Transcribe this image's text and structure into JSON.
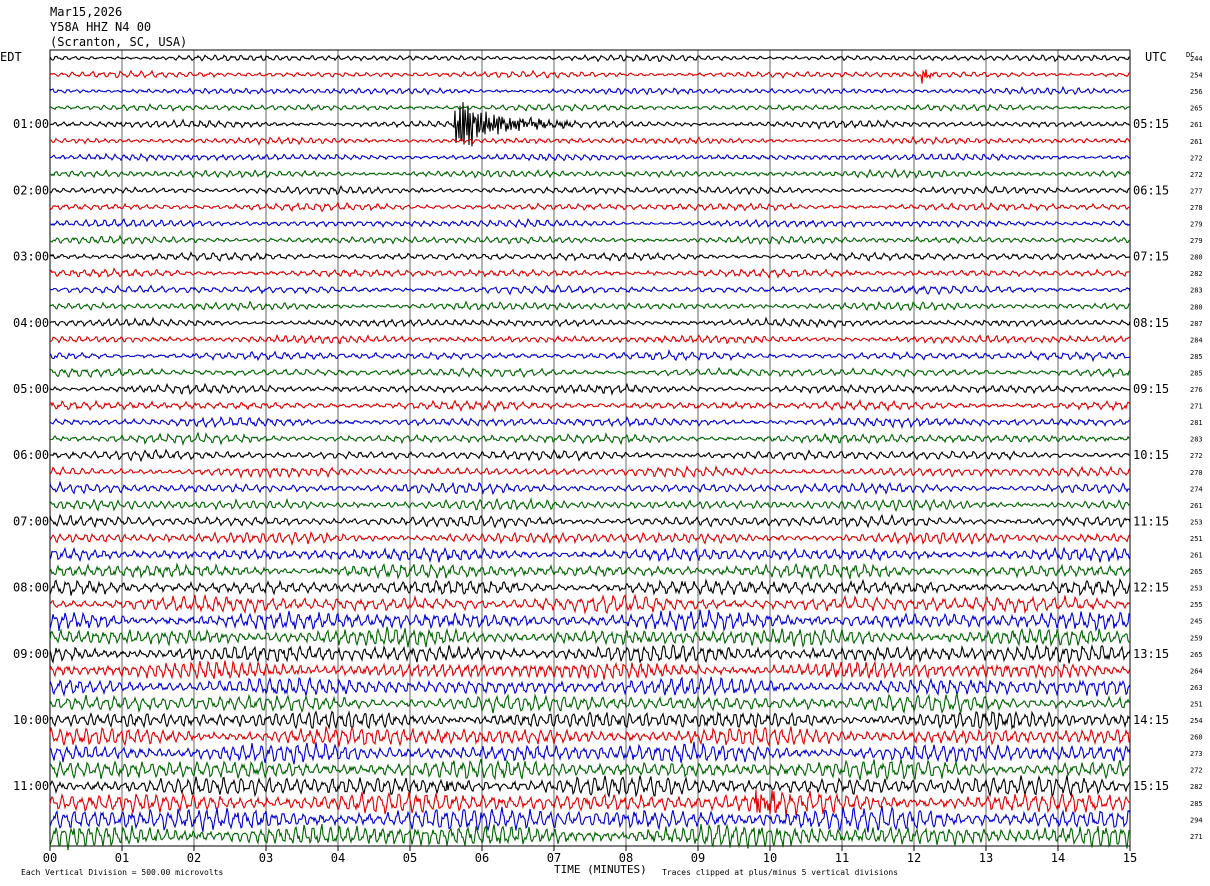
{
  "header": {
    "date": "Mar15,2026",
    "station": "Y58A HHZ N4 00",
    "location": "(Scranton, SC, USA)"
  },
  "left_axis_label": "EDT",
  "right_axis_label": "UTC",
  "dc_label": "DC",
  "footer": {
    "scale": "Each Vertical Division =  500.00 microvolts",
    "clip": "Traces clipped at plus/minus 5 vertical divisions",
    "xlabel": "TIME (MINUTES)"
  },
  "chart_data": {
    "type": "line",
    "title": "Y58A HHZ N4 00",
    "xlabel": "TIME (MINUTES)",
    "xlim": [
      0,
      15
    ],
    "x_ticks": [
      "00",
      "01",
      "02",
      "03",
      "04",
      "05",
      "06",
      "07",
      "08",
      "09",
      "10",
      "11",
      "12",
      "13",
      "14",
      "15"
    ],
    "trace_colors": [
      "#000000",
      "#e00000",
      "#0000d0",
      "#006400"
    ],
    "rows_per_hour": 4,
    "left_hour_labels": [
      "01:00",
      "02:00",
      "03:00",
      "04:00",
      "05:00",
      "06:00",
      "07:00",
      "08:00",
      "09:00",
      "10:00",
      "11:00"
    ],
    "right_hour_labels": [
      "05:15",
      "06:15",
      "07:15",
      "08:15",
      "09:15",
      "10:15",
      "11:15",
      "12:15",
      "13:15",
      "14:15",
      "15:15"
    ],
    "dc_offsets": [
      244,
      254,
      256,
      265,
      261,
      261,
      272,
      272,
      277,
      278,
      279,
      279,
      280,
      282,
      283,
      280,
      287,
      284,
      285,
      285,
      276,
      271,
      281,
      283,
      272,
      270,
      274,
      261,
      253,
      251,
      261,
      265,
      253,
      255,
      245,
      259,
      265,
      264,
      263,
      251,
      254,
      260,
      273,
      272,
      282,
      285,
      294,
      271
    ],
    "amplitude_per_row": [
      0.22,
      0.22,
      0.22,
      0.22,
      0.25,
      0.22,
      0.24,
      0.25,
      0.26,
      0.26,
      0.26,
      0.26,
      0.27,
      0.27,
      0.27,
      0.27,
      0.27,
      0.28,
      0.28,
      0.29,
      0.3,
      0.3,
      0.31,
      0.31,
      0.33,
      0.34,
      0.35,
      0.36,
      0.38,
      0.4,
      0.44,
      0.48,
      0.52,
      0.58,
      0.62,
      0.62,
      0.62,
      0.62,
      0.62,
      0.6,
      0.64,
      0.64,
      0.66,
      0.66,
      0.7,
      0.74,
      0.8,
      0.8
    ],
    "events": [
      {
        "row": 4,
        "start_min": 5.62,
        "end_min": 7.5,
        "peak": 2.0
      },
      {
        "row": 45,
        "start_min": 9.8,
        "end_min": 10.9,
        "peak": 0.9
      },
      {
        "row": 44,
        "start_min": 5.5,
        "end_min": 5.6,
        "peak": 1.0
      },
      {
        "row": 1,
        "start_min": 12.1,
        "end_min": 12.5,
        "peak": 0.6
      }
    ]
  }
}
